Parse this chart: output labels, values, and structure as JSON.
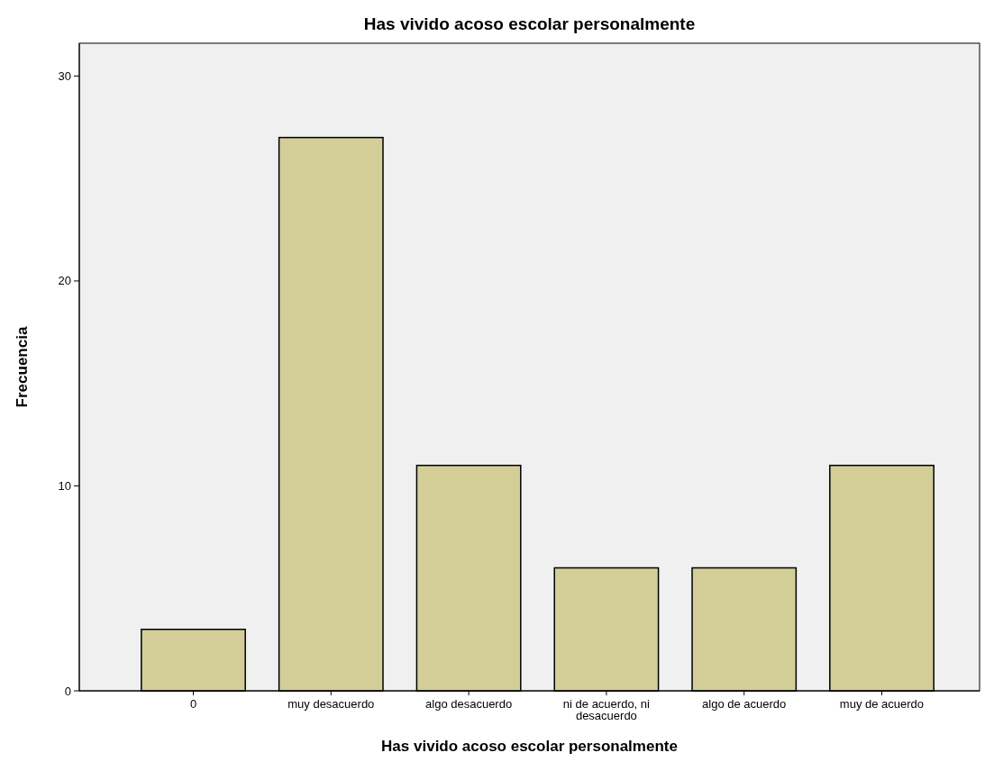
{
  "chart_data": {
    "type": "bar",
    "title": "Has vivido acoso escolar personalmente",
    "xlabel": "Has vivido acoso escolar personalmente",
    "ylabel": "Frecuencia",
    "categories": [
      "0",
      "muy desacuerdo",
      "algo desacuerdo",
      "ni de acuerdo, ni desacuerdo",
      "algo de acuerdo",
      "muy de acuerdo"
    ],
    "values": [
      3,
      27,
      11,
      6,
      6,
      11
    ],
    "color": "#d3ce97",
    "ylim": [
      0,
      31.6
    ],
    "yticks": [
      0,
      10,
      20,
      30
    ],
    "grid": false
  }
}
